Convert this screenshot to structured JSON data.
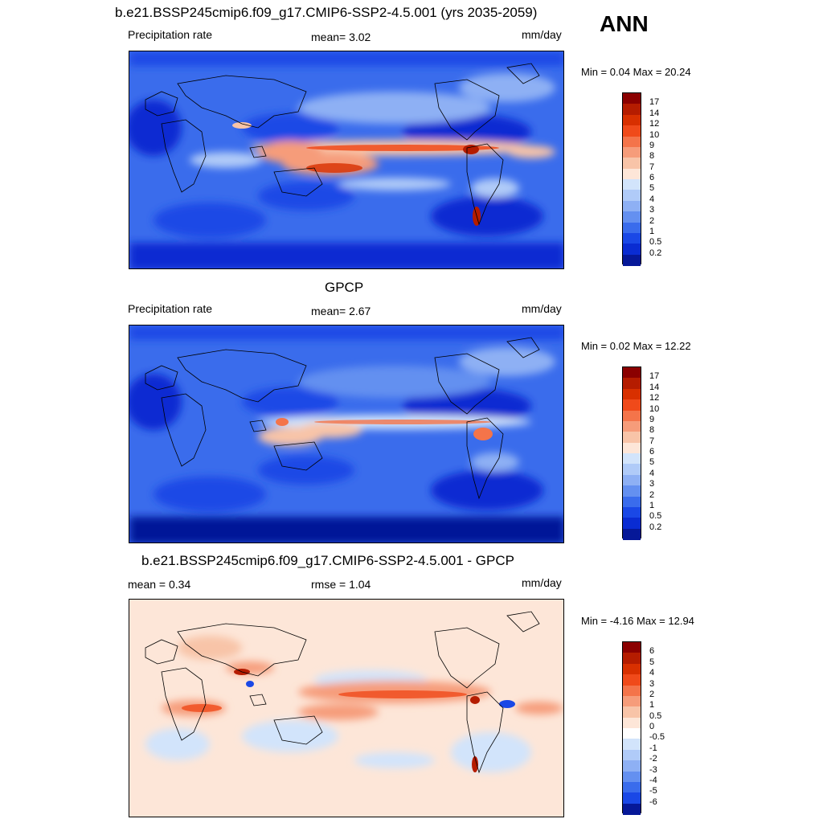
{
  "season": "ANN",
  "panels": [
    {
      "id": "model",
      "title": "b.e21.BSSP245cmip6.f09_g17.CMIP6-SSP2-4.5.001 (yrs 2035-2059)",
      "left_label": "Precipitation rate",
      "mid_label": "mean=   3.02",
      "units": "mm/day",
      "minmax": "Min =   0.04 Max =  20.24",
      "colorbar": {
        "labels": [
          "17",
          "14",
          "12",
          "10",
          "9",
          "8",
          "7",
          "6",
          "5",
          "4",
          "3",
          "2",
          "1",
          "0.5",
          "0.2"
        ],
        "colors": [
          "#8b0000",
          "#b51c00",
          "#d83000",
          "#f04a1a",
          "#f4744a",
          "#f69c7a",
          "#f8c4a8",
          "#fde6d8",
          "#d2e4fb",
          "#b0cbf8",
          "#8eb0f4",
          "#6490f0",
          "#3a6cec",
          "#1a48e6",
          "#0a2cd2",
          "#061898"
        ]
      }
    },
    {
      "id": "obs",
      "title": "GPCP",
      "left_label": "Precipitation rate",
      "mid_label": "mean=   2.67",
      "units": "mm/day",
      "minmax": "Min =   0.02 Max =  12.22",
      "colorbar": {
        "labels": [
          "17",
          "14",
          "12",
          "10",
          "9",
          "8",
          "7",
          "6",
          "5",
          "4",
          "3",
          "2",
          "1",
          "0.5",
          "0.2"
        ],
        "colors": [
          "#8b0000",
          "#b51c00",
          "#d83000",
          "#f04a1a",
          "#f4744a",
          "#f69c7a",
          "#f8c4a8",
          "#fde6d8",
          "#d2e4fb",
          "#b0cbf8",
          "#8eb0f4",
          "#6490f0",
          "#3a6cec",
          "#1a48e6",
          "#0a2cd2",
          "#061898"
        ]
      }
    },
    {
      "id": "diff",
      "title": "b.e21.BSSP245cmip6.f09_g17.CMIP6-SSP2-4.5.001 - GPCP",
      "left_label": "mean =   0.34",
      "mid_label": "rmse =   1.04",
      "units": "mm/day",
      "minmax": "Min =  -4.16 Max =  12.94",
      "colorbar": {
        "labels": [
          "6",
          "5",
          "4",
          "3",
          "2",
          "1",
          "0.5",
          "0",
          "-0.5",
          "-1",
          "-2",
          "-3",
          "-4",
          "-5",
          "-6"
        ],
        "colors": [
          "#8b0000",
          "#b51c00",
          "#d83000",
          "#f04a1a",
          "#f4744a",
          "#f69c7a",
          "#f8c4a8",
          "#fde6d8",
          "#ffffff",
          "#d2e4fb",
          "#b0cbf8",
          "#8eb0f4",
          "#6490f0",
          "#3a6cec",
          "#1a48e6",
          "#061898"
        ]
      }
    }
  ]
}
